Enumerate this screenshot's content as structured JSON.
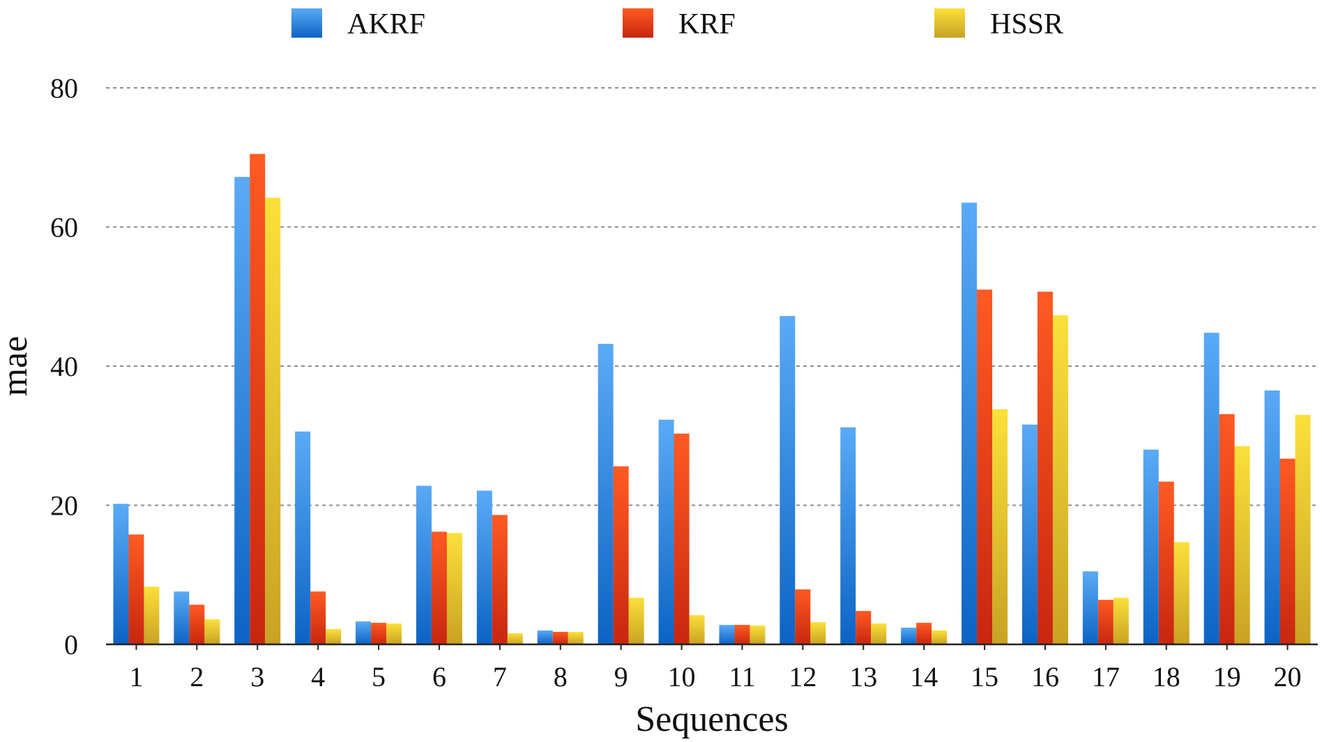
{
  "chart_data": {
    "type": "bar",
    "title": "",
    "xlabel": "Sequences",
    "ylabel": "mae",
    "ylim": [
      0,
      80
    ],
    "yticks": [
      0,
      20,
      40,
      60,
      80
    ],
    "grid": "horizontal dashed",
    "legend_position": "top",
    "categories": [
      "1",
      "2",
      "3",
      "4",
      "5",
      "6",
      "7",
      "8",
      "9",
      "10",
      "11",
      "12",
      "13",
      "14",
      "15",
      "16",
      "17",
      "18",
      "19",
      "20"
    ],
    "series": [
      {
        "name": "AKRF",
        "color": "#3a8fe0",
        "values": [
          20.2,
          7.6,
          67.2,
          30.6,
          3.3,
          22.8,
          22.1,
          2.0,
          43.2,
          32.3,
          2.8,
          47.2,
          31.2,
          2.4,
          63.5,
          31.6,
          10.5,
          28.0,
          44.8,
          36.5
        ]
      },
      {
        "name": "KRF",
        "color": "#e8401e",
        "values": [
          15.8,
          5.7,
          70.5,
          7.6,
          3.1,
          16.2,
          18.6,
          1.8,
          25.6,
          30.3,
          2.8,
          7.9,
          4.8,
          3.1,
          51.0,
          50.7,
          6.4,
          23.4,
          33.1,
          26.7
        ]
      },
      {
        "name": "HSSR",
        "color": "#e7c422",
        "values": [
          8.3,
          3.6,
          64.2,
          2.2,
          3.0,
          16.0,
          1.6,
          1.8,
          6.7,
          4.2,
          2.7,
          3.2,
          3.0,
          2.0,
          33.8,
          47.3,
          6.7,
          14.7,
          28.5,
          33.0
        ]
      }
    ]
  }
}
